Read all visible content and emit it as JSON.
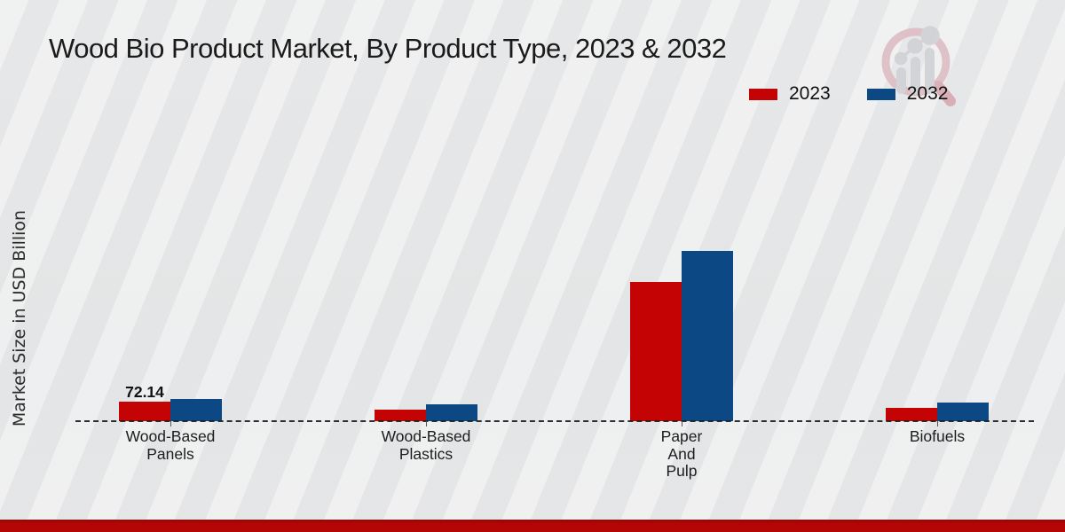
{
  "title": "Wood Bio Product Market, By Product Type, 2023 & 2032",
  "ylabel": "Market Size in USD Billion",
  "watermark_icon": "magnifier-bar-chart-logo",
  "legend": {
    "items": [
      {
        "label": "2023",
        "color": "#c40404"
      },
      {
        "label": "2032",
        "color": "#0c4884"
      }
    ]
  },
  "value_label": "72.14",
  "footer_color": "#b30505",
  "chart_data": {
    "type": "bar",
    "title": "Wood Bio Product Market, By Product Type, 2023 & 2032",
    "ylabel": "Market Size in USD Billion",
    "xlabel": "",
    "grid": false,
    "baseline_style": "dashed",
    "legend_position": "top-right",
    "categories": [
      "Wood-Based\nPanels",
      "Wood-Based\nPlastics",
      "Paper\nAnd\nPulp",
      "Biofuels"
    ],
    "series": [
      {
        "name": "2023",
        "color": "#c40404",
        "values": [
          72.14,
          43,
          515,
          49
        ]
      },
      {
        "name": "2032",
        "color": "#0c4884",
        "values": [
          82,
          62,
          630,
          69
        ]
      }
    ],
    "data_labels": [
      {
        "series": "2023",
        "category_index": 0,
        "text": "72.14"
      }
    ]
  }
}
